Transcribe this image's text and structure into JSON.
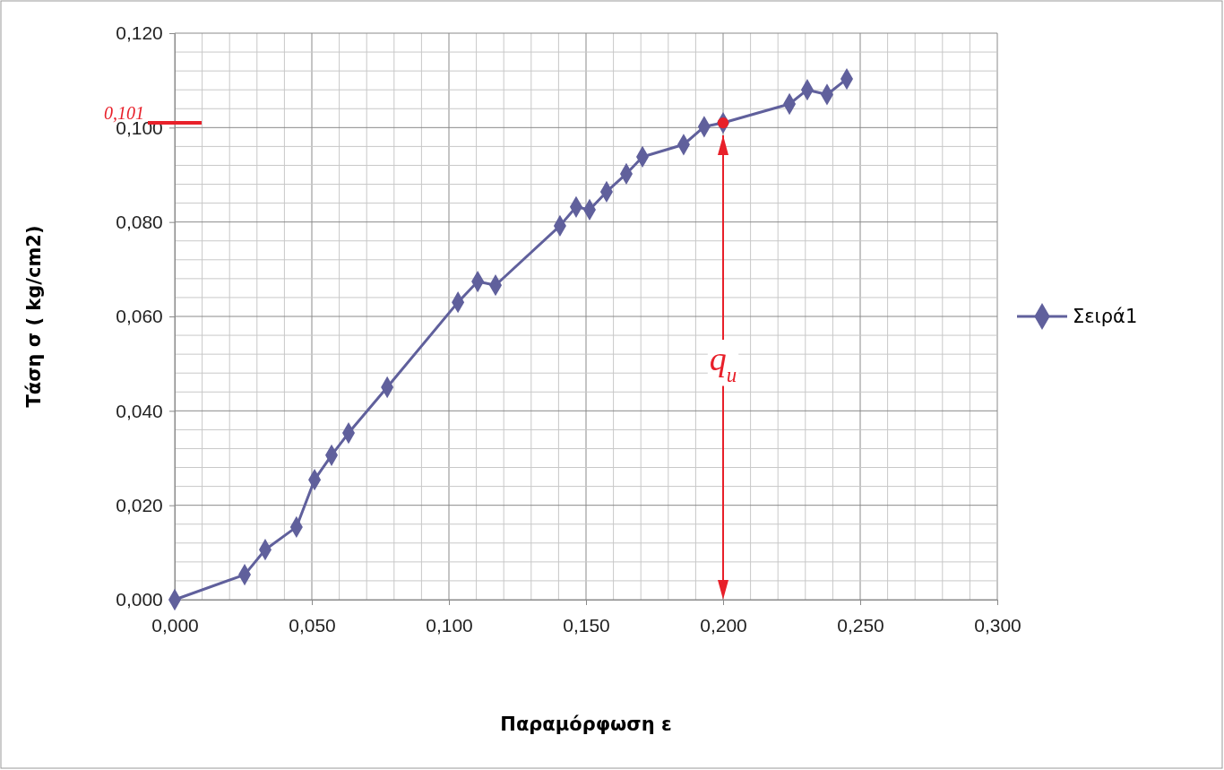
{
  "chart_data": {
    "type": "line",
    "xlabel": "Παραμόρφωση ε",
    "ylabel": "Τάση σ ( kg/cm2)",
    "xlim": [
      0,
      0.3
    ],
    "ylim": [
      0,
      0.12
    ],
    "xticks": [
      {
        "value": 0,
        "label": "0,000"
      },
      {
        "value": 0.05,
        "label": "0,050"
      },
      {
        "value": 0.1,
        "label": "0,100"
      },
      {
        "value": 0.15,
        "label": "0,150"
      },
      {
        "value": 0.2,
        "label": "0,200"
      },
      {
        "value": 0.25,
        "label": "0,250"
      },
      {
        "value": 0.3,
        "label": "0,300"
      }
    ],
    "yticks": [
      {
        "value": 0,
        "label": "0,000"
      },
      {
        "value": 0.02,
        "label": "0,020"
      },
      {
        "value": 0.04,
        "label": "0,040"
      },
      {
        "value": 0.06,
        "label": "0,060"
      },
      {
        "value": 0.08,
        "label": "0,080"
      },
      {
        "value": 0.1,
        "label": "0,100"
      },
      {
        "value": 0.12,
        "label": "0,120"
      }
    ],
    "grid": true,
    "legend": "right",
    "marker": "diamond",
    "line_style": "solid",
    "series": [
      {
        "name": "Σειρά1",
        "color": "#60609c",
        "x": [
          0,
          0.0255,
          0.033,
          0.0444,
          0.051,
          0.0572,
          0.0634,
          0.0775,
          0.1033,
          0.1105,
          0.117,
          0.1405,
          0.1464,
          0.1513,
          0.1575,
          0.1647,
          0.1706,
          0.1856,
          0.1931,
          0.2,
          0.2242,
          0.2307,
          0.2379,
          0.2451
        ],
        "values": [
          0,
          0.0053,
          0.0106,
          0.0154,
          0.0254,
          0.0306,
          0.0353,
          0.045,
          0.063,
          0.0674,
          0.0666,
          0.0792,
          0.0832,
          0.0826,
          0.0864,
          0.0902,
          0.0938,
          0.0964,
          0.1002,
          0.101,
          0.105,
          0.108,
          0.107,
          0.1103
        ]
      },
      {
        "type": "scatter",
        "marker": "circle",
        "color": "#e8202a",
        "x": [
          0.2
        ],
        "values": [
          0.101
        ]
      }
    ],
    "ref_lines": [
      {
        "axis": "y",
        "value": 0.101,
        "label": "0,101",
        "color": "#e8202a"
      },
      {
        "axis": "x",
        "value": 0.2,
        "label": "q$_{u}$",
        "color": "#e8202a"
      }
    ]
  }
}
